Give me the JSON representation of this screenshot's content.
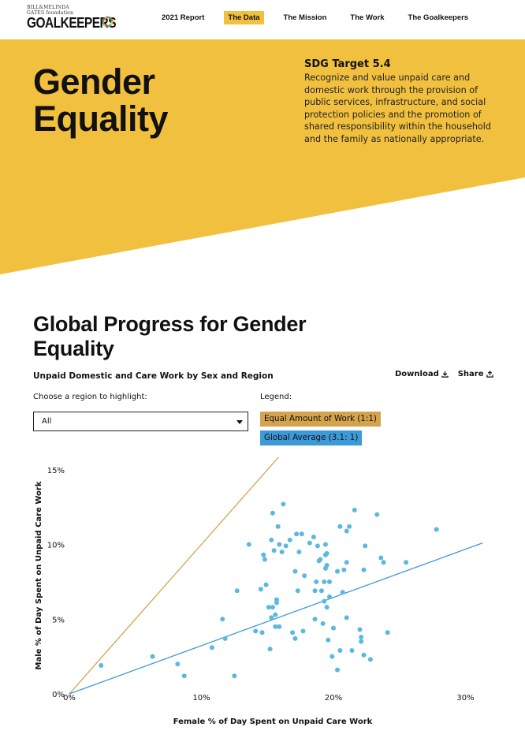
{
  "nav": {
    "logo_small": "BILL&MELINDA GATES foundation",
    "logo_main": "GOALKEEPERS",
    "links": [
      {
        "label": "2021 Report",
        "active": false
      },
      {
        "label": "The Data",
        "active": true
      },
      {
        "label": "The Mission",
        "active": false
      },
      {
        "label": "The Work",
        "active": false
      },
      {
        "label": "The Goalkeepers",
        "active": false
      }
    ]
  },
  "hero": {
    "title_line1": "Gender",
    "title_line2": "Equality",
    "sdg_target": "SDG Target 5.4",
    "sdg_description": "Recognize and value unpaid care and domestic work through the provision of public services, infrastructure, and social protection policies and the promotion of shared responsibility within the household and the family as nationally appropriate.",
    "color": "#f1c03e"
  },
  "section": {
    "title": "Global Progress for Gender Equality",
    "subtitle": "Unpaid Domestic and Care Work by Sex and Region",
    "download_label": "Download",
    "share_label": "Share",
    "region_label": "Choose a region to highlight:",
    "region_value": "All",
    "legend_label": "Legend:",
    "legend": [
      {
        "label": "Equal Amount of Work (1:1)",
        "color": "#d4a34d"
      },
      {
        "label": "Global Average (3.1: 1)",
        "color": "#3d9ad8"
      }
    ]
  },
  "chart_data": {
    "type": "scatter",
    "xlabel": "Female % of Day Spent on Unpaid Care Work",
    "ylabel": "Male % of Day Spent on Unpaid Care Work",
    "xlim": [
      0,
      31
    ],
    "ylim": [
      0,
      15
    ],
    "xticks": [
      0,
      10,
      20,
      30
    ],
    "xtick_labels": [
      "0%",
      "10%",
      "20%",
      "30%"
    ],
    "yticks": [
      0,
      5,
      10,
      15
    ],
    "ytick_labels": [
      "0%",
      "5%",
      "10%",
      "15%"
    ],
    "point_color": "#5bb8df",
    "lines": [
      {
        "name": "Equal Amount of Work (1:1)",
        "slope": 1,
        "x_end": 16,
        "color": "#d4a34d"
      },
      {
        "name": "Global Average (3.1: 1)",
        "slope": 0.3226,
        "x_end": 31.3,
        "color": "#3d9ad8"
      }
    ],
    "points": [
      [
        2.4,
        1.9
      ],
      [
        6.3,
        2.5
      ],
      [
        8.2,
        2.0
      ],
      [
        8.7,
        1.2
      ],
      [
        10.8,
        3.1
      ],
      [
        11.6,
        5.0
      ],
      [
        11.8,
        3.7
      ],
      [
        12.5,
        1.2
      ],
      [
        12.7,
        6.9
      ],
      [
        13.6,
        10.0
      ],
      [
        14.1,
        4.2
      ],
      [
        14.5,
        7.0
      ],
      [
        14.6,
        4.1
      ],
      [
        14.7,
        9.3
      ],
      [
        14.8,
        9.0
      ],
      [
        14.9,
        7.3
      ],
      [
        15.1,
        5.8
      ],
      [
        15.2,
        3.0
      ],
      [
        15.3,
        10.3
      ],
      [
        15.4,
        12.1
      ],
      [
        15.3,
        5.1
      ],
      [
        15.4,
        5.8
      ],
      [
        15.5,
        9.6
      ],
      [
        15.6,
        5.3
      ],
      [
        15.6,
        4.5
      ],
      [
        15.7,
        6.1
      ],
      [
        15.7,
        6.3
      ],
      [
        15.8,
        11.2
      ],
      [
        15.9,
        10.0
      ],
      [
        15.9,
        4.5
      ],
      [
        16.1,
        9.5
      ],
      [
        16.2,
        12.7
      ],
      [
        16.4,
        9.9
      ],
      [
        16.7,
        10.3
      ],
      [
        16.9,
        4.1
      ],
      [
        17.1,
        3.7
      ],
      [
        17.1,
        8.2
      ],
      [
        17.2,
        10.7
      ],
      [
        17.3,
        6.9
      ],
      [
        17.4,
        9.5
      ],
      [
        17.6,
        10.7
      ],
      [
        17.7,
        4.2
      ],
      [
        17.8,
        7.9
      ],
      [
        18.2,
        10.1
      ],
      [
        18.5,
        10.5
      ],
      [
        18.6,
        5.0
      ],
      [
        18.6,
        6.9
      ],
      [
        18.7,
        7.5
      ],
      [
        18.8,
        9.9
      ],
      [
        18.9,
        8.9
      ],
      [
        19.0,
        9.0
      ],
      [
        19.1,
        6.9
      ],
      [
        19.2,
        4.7
      ],
      [
        19.3,
        7.5
      ],
      [
        19.3,
        6.2
      ],
      [
        19.4,
        9.3
      ],
      [
        19.4,
        8.4
      ],
      [
        19.4,
        10.0
      ],
      [
        19.5,
        5.8
      ],
      [
        19.5,
        8.6
      ],
      [
        19.5,
        9.4
      ],
      [
        19.6,
        3.6
      ],
      [
        19.7,
        6.5
      ],
      [
        19.7,
        7.5
      ],
      [
        19.9,
        2.5
      ],
      [
        20.0,
        4.4
      ],
      [
        20.3,
        1.6
      ],
      [
        20.3,
        8.2
      ],
      [
        20.5,
        11.2
      ],
      [
        20.5,
        2.9
      ],
      [
        20.7,
        6.8
      ],
      [
        20.8,
        8.3
      ],
      [
        21.0,
        8.8
      ],
      [
        21.0,
        10.9
      ],
      [
        21.2,
        11.2
      ],
      [
        21.4,
        2.9
      ],
      [
        21.6,
        12.3
      ],
      [
        21.0,
        5.1
      ],
      [
        22.0,
        4.3
      ],
      [
        22.1,
        3.8
      ],
      [
        22.1,
        3.5
      ],
      [
        22.3,
        2.6
      ],
      [
        22.3,
        8.3
      ],
      [
        22.4,
        9.9
      ],
      [
        22.8,
        2.3
      ],
      [
        23.3,
        12.0
      ],
      [
        23.6,
        9.1
      ],
      [
        23.8,
        8.8
      ],
      [
        24.1,
        4.1
      ],
      [
        25.5,
        8.8
      ],
      [
        27.8,
        11.0
      ]
    ]
  }
}
